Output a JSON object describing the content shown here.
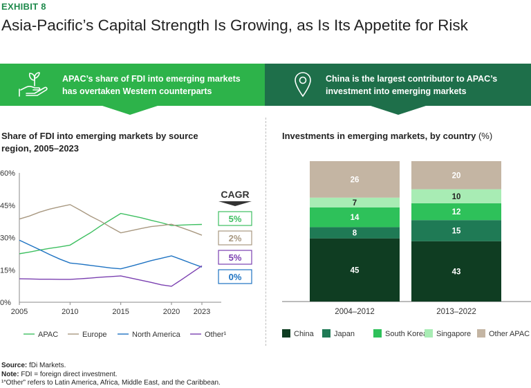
{
  "exhibit_label": "EXHIBIT 8",
  "title": "Asia-Pacific’s Capital Strength Is Growing, as Is Its Appetite for Risk",
  "banner_left": {
    "line1": "APAC’s share of FDI into emerging markets",
    "line2": "has overtaken Western counterparts",
    "icon": "hand-plant-icon"
  },
  "banner_right": {
    "line1": "China is the largest contributor to APAC’s",
    "line2": "investment into emerging markets",
    "icon": "location-pin-icon"
  },
  "notes": {
    "source_label": "Source:",
    "source_text": "fDi Markets.",
    "note_label": "Note:",
    "note_text": "FDI = foreign direct investment.",
    "footnote": "¹“Other” refers to Latin America, Africa, Middle East, and the Caribbean."
  },
  "chart_data": [
    {
      "type": "line",
      "title_line1": "Share of FDI into emerging markets by source",
      "title_line2": "region, 2005–2023",
      "x": [
        2005,
        2006,
        2007,
        2008,
        2009,
        2010,
        2011,
        2012,
        2013,
        2014,
        2015,
        2016,
        2017,
        2018,
        2019,
        2020,
        2021,
        2022,
        2023
      ],
      "x_tick_labels": [
        "2005",
        "2010",
        "2015",
        "2020",
        "2023"
      ],
      "y_tick_labels": [
        "60%",
        "45%",
        "30%",
        "15%",
        "0%"
      ],
      "ylim": [
        0,
        60
      ],
      "series": [
        {
          "name": "APAC",
          "color": "#3dbf60",
          "values": [
            22.5,
            23.3,
            24.2,
            25.0,
            25.7,
            26.5,
            29.4,
            32.2,
            35.4,
            38.3,
            41.2,
            40.2,
            39.2,
            38.0,
            36.9,
            35.6,
            35.8,
            36.0,
            36.1
          ]
        },
        {
          "name": "Europe",
          "color": "#a89880",
          "values": [
            38.6,
            40.0,
            41.8,
            43.2,
            44.3,
            45.3,
            42.7,
            40.0,
            37.6,
            34.8,
            32.2,
            33.2,
            34.2,
            35.1,
            35.6,
            36.2,
            34.6,
            32.9,
            31.1
          ]
        },
        {
          "name": "North America",
          "color": "#1d72c2",
          "values": [
            28.8,
            26.6,
            24.4,
            22.1,
            20.0,
            18.2,
            17.7,
            17.1,
            16.5,
            15.9,
            15.5,
            16.7,
            18.0,
            19.3,
            20.4,
            21.5,
            19.8,
            18.0,
            16.3
          ]
        },
        {
          "name": "Other¹",
          "color": "#7a3fb0",
          "values": [
            10.9,
            10.8,
            10.7,
            10.7,
            10.6,
            10.6,
            10.9,
            11.2,
            11.6,
            11.9,
            12.2,
            11.2,
            10.2,
            9.2,
            8.1,
            7.4,
            10.5,
            13.7,
            16.9
          ]
        }
      ],
      "cagr": {
        "label": "CAGR",
        "values": [
          {
            "name": "APAC",
            "value": "5%",
            "color": "#3dbf60"
          },
          {
            "name": "Europe",
            "value": "2%",
            "color": "#a89880"
          },
          {
            "name": "Other¹",
            "value": "5%",
            "color": "#7a3fb0"
          },
          {
            "name": "North America",
            "value": "0%",
            "color": "#1d72c2"
          }
        ]
      }
    },
    {
      "type": "stacked-bar",
      "title": "Investments in emerging markets, by country",
      "unit": "(%)",
      "categories": [
        "2004–2012",
        "2013–2022"
      ],
      "series": [
        {
          "name": "China",
          "color": "#0f3d22",
          "values": [
            45,
            43
          ]
        },
        {
          "name": "Japan",
          "color": "#1f7a55",
          "values": [
            8,
            15
          ]
        },
        {
          "name": "South Korea",
          "color": "#2ec15a",
          "values": [
            14,
            12
          ]
        },
        {
          "name": "Singapore",
          "color": "#a8ecb4",
          "values": [
            7,
            10
          ]
        },
        {
          "name": "Other APAC",
          "color": "#c4b5a3",
          "values": [
            26,
            20
          ]
        }
      ],
      "label_colors": {
        "China": "#ffffff",
        "Japan": "#ffffff",
        "South Korea": "#ffffff",
        "Singapore": "#222222",
        "Other APAC": "#ffffff"
      }
    }
  ]
}
